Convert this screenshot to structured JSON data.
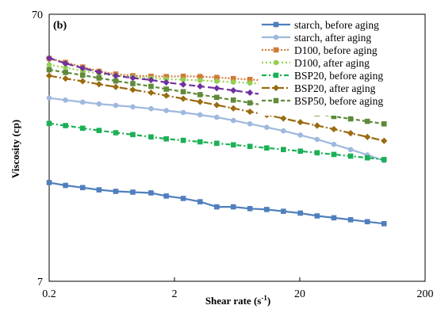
{
  "chart_data": {
    "type": "line",
    "panel_label": "(b)",
    "xlabel_main": "Shear rate (s",
    "xlabel_sup": "-1",
    "xlabel_end": ")",
    "ylabel": "Viscosity (cp)",
    "xscale": "log",
    "yscale": "log",
    "xlim": [
      0.2,
      200
    ],
    "ylim": [
      7,
      70
    ],
    "xticks": [
      0.2,
      2,
      20,
      200
    ],
    "xtick_labels": [
      "0.2",
      "2",
      "20",
      "200"
    ],
    "yticks": [
      7,
      70
    ],
    "ytick_labels": [
      "7",
      "70"
    ],
    "grid": false,
    "legend_position": "top-right",
    "x": [
      0.2,
      0.27,
      0.37,
      0.5,
      0.68,
      0.93,
      1.3,
      1.72,
      2.35,
      3.2,
      4.35,
      5.9,
      8,
      10.9,
      14.8,
      20.2,
      27.5,
      37.4,
      50.9,
      69.2,
      94.1
    ],
    "series": [
      {
        "name": "starch, before aging",
        "color": "#4f7fbd",
        "dash": "",
        "marker": "square",
        "y": [
          16.4,
          16.0,
          15.7,
          15.4,
          15.2,
          15.1,
          15.0,
          14.6,
          14.3,
          13.9,
          13.3,
          13.3,
          13.1,
          13.0,
          12.8,
          12.6,
          12.3,
          12.1,
          11.9,
          11.7,
          11.5
        ]
      },
      {
        "name": "starch, after aging",
        "color": "#9fb8de",
        "dash": "",
        "marker": "circle",
        "y": [
          34.0,
          33.4,
          32.8,
          32.3,
          31.9,
          31.5,
          31.0,
          30.5,
          30.0,
          29.4,
          28.8,
          28.0,
          27.2,
          26.4,
          25.6,
          24.7,
          23.8,
          22.8,
          21.8,
          20.8,
          19.8
        ]
      },
      {
        "name": "D100, before aging",
        "color": "#d07b36",
        "dash": "2 2",
        "marker": "square",
        "y": [
          47.8,
          46.2,
          44.4,
          42.8,
          41.8,
          41.2,
          41.0,
          40.9,
          41.0,
          40.9,
          40.6,
          40.2,
          39.9,
          39.5,
          39.2,
          38.7,
          38.0,
          37.0,
          36.0,
          34.6,
          33.0
        ]
      },
      {
        "name": "D100, after aging",
        "color": "#93cf50",
        "dash": "2 3",
        "marker": "circle",
        "y": [
          45.3,
          44.2,
          43.0,
          42.0,
          41.2,
          40.7,
          40.3,
          40.0,
          39.8,
          39.6,
          39.3,
          39.0,
          38.7,
          38.3,
          37.9,
          37.5,
          36.8,
          36.0,
          35.2,
          34.0,
          32.7
        ]
      },
      {
        "name": "BSP20, before aging",
        "color": "#1bb056",
        "dash": "6 3 2 3",
        "marker": "square",
        "y": [
          27.3,
          26.8,
          26.2,
          25.7,
          25.2,
          24.8,
          24.3,
          23.9,
          23.6,
          23.3,
          23.0,
          22.7,
          22.4,
          22.1,
          21.8,
          21.5,
          21.2,
          20.9,
          20.6,
          20.3,
          20.0
        ]
      },
      {
        "name": "BSP20, after aging",
        "color": "#9a6b10",
        "dash": "10 3 2 3",
        "marker": "diamond",
        "y": [
          41.2,
          40.2,
          39.3,
          38.3,
          37.4,
          36.5,
          35.6,
          34.7,
          33.8,
          32.9,
          32.0,
          31.1,
          30.2,
          29.4,
          28.5,
          27.6,
          26.8,
          26.0,
          25.1,
          24.3,
          23.5
        ]
      },
      {
        "name": "BSP50, before aging",
        "color": "#5f8a3a",
        "dash": "5 3",
        "marker": "square",
        "y": [
          43.4,
          42.4,
          41.4,
          40.4,
          39.4,
          38.5,
          37.6,
          36.7,
          35.9,
          35.0,
          34.2,
          33.4,
          32.6,
          31.8,
          31.1,
          30.4,
          29.7,
          29.0,
          28.4,
          27.8,
          27.2
        ]
      },
      {
        "name": "",
        "color": "#7030a0",
        "dash": "8 4",
        "marker": "diamond",
        "y": [
          48.0,
          45.8,
          44.0,
          42.5,
          41.2,
          40.4,
          39.7,
          38.9,
          38.2,
          37.6,
          37.0,
          36.3,
          35.6,
          34.9,
          34.3,
          33.6,
          32.9,
          32.2,
          31.5,
          30.8,
          30.0
        ]
      }
    ]
  }
}
